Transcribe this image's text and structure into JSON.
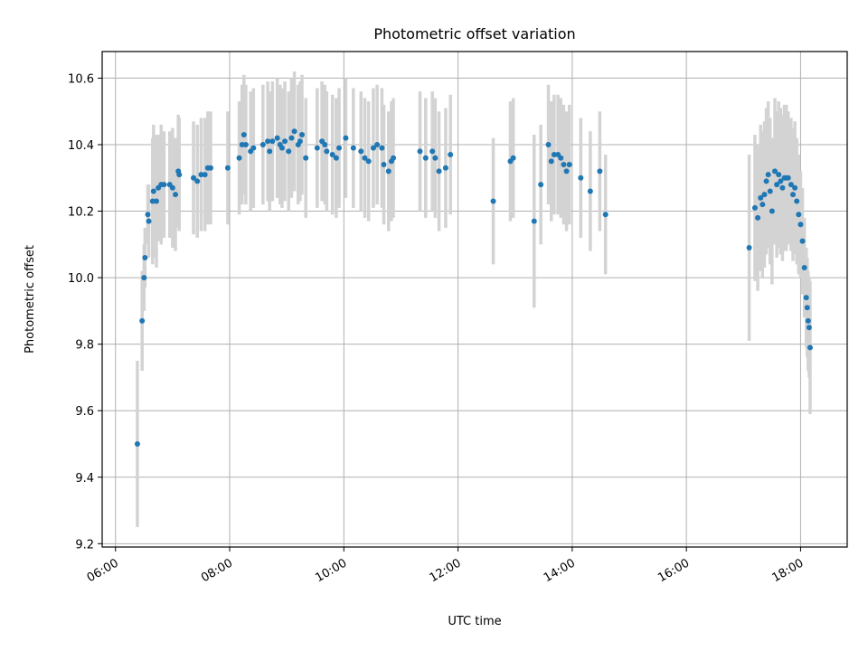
{
  "chart_data": {
    "type": "scatter",
    "title": "Photometric offset variation",
    "xlabel": "UTC time",
    "ylabel": "Photometric offset",
    "x_tick_labels": [
      "06:00",
      "08:00",
      "10:00",
      "12:00",
      "14:00",
      "16:00",
      "18:00"
    ],
    "y_tick_labels": [
      "9.2",
      "9.4",
      "9.6",
      "9.8",
      "10.0",
      "10.2",
      "10.4",
      "10.6"
    ],
    "xlim": [
      "05:46",
      "18:49"
    ],
    "ylim": [
      9.19,
      10.68
    ],
    "grid": true,
    "colors": {
      "points": "#1f77b4",
      "error_bars": "#d3d3d3"
    },
    "points": [
      [
        "06:23",
        9.5,
        0.25
      ],
      [
        "06:28",
        9.87,
        0.15
      ],
      [
        "06:30",
        10.0,
        0.1
      ],
      [
        "06:31",
        10.06,
        0.09
      ],
      [
        "06:34",
        10.19,
        0.09
      ],
      [
        "06:35",
        10.17,
        0.11
      ],
      [
        "06:39",
        10.23,
        0.19
      ],
      [
        "06:40",
        10.26,
        0.2
      ],
      [
        "06:43",
        10.23,
        0.2
      ],
      [
        "06:45",
        10.27,
        0.16
      ],
      [
        "06:48",
        10.28,
        0.18
      ],
      [
        "06:51",
        10.28,
        0.16
      ],
      [
        "06:57",
        10.28,
        0.16
      ],
      [
        "07:00",
        10.27,
        0.18
      ],
      [
        "07:03",
        10.25,
        0.17
      ],
      [
        "07:06",
        10.32,
        0.17
      ],
      [
        "07:07",
        10.31,
        0.17
      ],
      [
        "07:22",
        10.3,
        0.17
      ],
      [
        "07:26",
        10.29,
        0.17
      ],
      [
        "07:30",
        10.31,
        0.17
      ],
      [
        "07:34",
        10.31,
        0.17
      ],
      [
        "07:37",
        10.33,
        0.17
      ],
      [
        "07:40",
        10.33,
        0.17
      ],
      [
        "07:58",
        10.33,
        0.17
      ],
      [
        "08:10",
        10.36,
        0.17
      ],
      [
        "08:13",
        10.4,
        0.18
      ],
      [
        "08:15",
        10.43,
        0.18
      ],
      [
        "08:17",
        10.4,
        0.18
      ],
      [
        "08:22",
        10.38,
        0.18
      ],
      [
        "08:25",
        10.39,
        0.18
      ],
      [
        "08:35",
        10.4,
        0.18
      ],
      [
        "08:40",
        10.41,
        0.18
      ],
      [
        "08:42",
        10.38,
        0.18
      ],
      [
        "08:45",
        10.41,
        0.18
      ],
      [
        "08:50",
        10.42,
        0.18
      ],
      [
        "08:53",
        10.4,
        0.18
      ],
      [
        "08:55",
        10.39,
        0.18
      ],
      [
        "08:58",
        10.41,
        0.18
      ],
      [
        "09:02",
        10.38,
        0.18
      ],
      [
        "09:05",
        10.42,
        0.18
      ],
      [
        "09:08",
        10.44,
        0.18
      ],
      [
        "09:12",
        10.4,
        0.18
      ],
      [
        "09:14",
        10.41,
        0.18
      ],
      [
        "09:16",
        10.43,
        0.18
      ],
      [
        "09:20",
        10.36,
        0.18
      ],
      [
        "09:32",
        10.39,
        0.18
      ],
      [
        "09:37",
        10.41,
        0.18
      ],
      [
        "09:40",
        10.4,
        0.18
      ],
      [
        "09:42",
        10.38,
        0.18
      ],
      [
        "09:48",
        10.37,
        0.18
      ],
      [
        "09:52",
        10.36,
        0.18
      ],
      [
        "09:55",
        10.39,
        0.18
      ],
      [
        "10:02",
        10.42,
        0.18
      ],
      [
        "10:10",
        10.39,
        0.18
      ],
      [
        "10:18",
        10.38,
        0.18
      ],
      [
        "10:22",
        10.36,
        0.18
      ],
      [
        "10:26",
        10.35,
        0.18
      ],
      [
        "10:31",
        10.39,
        0.18
      ],
      [
        "10:35",
        10.4,
        0.18
      ],
      [
        "10:40",
        10.39,
        0.18
      ],
      [
        "10:42",
        10.34,
        0.18
      ],
      [
        "10:47",
        10.32,
        0.18
      ],
      [
        "10:50",
        10.35,
        0.18
      ],
      [
        "10:52",
        10.36,
        0.18
      ],
      [
        "11:20",
        10.38,
        0.18
      ],
      [
        "11:26",
        10.36,
        0.18
      ],
      [
        "11:33",
        10.38,
        0.18
      ],
      [
        "11:36",
        10.36,
        0.18
      ],
      [
        "11:40",
        10.32,
        0.18
      ],
      [
        "11:47",
        10.33,
        0.18
      ],
      [
        "11:52",
        10.37,
        0.18
      ],
      [
        "12:37",
        10.23,
        0.19
      ],
      [
        "12:55",
        10.35,
        0.18
      ],
      [
        "12:58",
        10.36,
        0.18
      ],
      [
        "13:20",
        10.17,
        0.26
      ],
      [
        "13:27",
        10.28,
        0.18
      ],
      [
        "13:35",
        10.4,
        0.18
      ],
      [
        "13:38",
        10.35,
        0.18
      ],
      [
        "13:41",
        10.37,
        0.18
      ],
      [
        "13:45",
        10.37,
        0.18
      ],
      [
        "13:48",
        10.36,
        0.18
      ],
      [
        "13:51",
        10.34,
        0.18
      ],
      [
        "13:54",
        10.32,
        0.18
      ],
      [
        "13:57",
        10.34,
        0.18
      ],
      [
        "14:09",
        10.3,
        0.18
      ],
      [
        "14:19",
        10.26,
        0.18
      ],
      [
        "14:29",
        10.32,
        0.18
      ],
      [
        "14:35",
        10.19,
        0.18
      ],
      [
        "17:06",
        10.09,
        0.28
      ],
      [
        "17:12",
        10.21,
        0.22
      ],
      [
        "17:15",
        10.18,
        0.22
      ],
      [
        "17:18",
        10.24,
        0.22
      ],
      [
        "17:20",
        10.22,
        0.22
      ],
      [
        "17:22",
        10.25,
        0.22
      ],
      [
        "17:24",
        10.29,
        0.22
      ],
      [
        "17:26",
        10.31,
        0.22
      ],
      [
        "17:28",
        10.26,
        0.22
      ],
      [
        "17:30",
        10.2,
        0.22
      ],
      [
        "17:33",
        10.32,
        0.22
      ],
      [
        "17:35",
        10.28,
        0.22
      ],
      [
        "17:37",
        10.31,
        0.22
      ],
      [
        "17:39",
        10.29,
        0.22
      ],
      [
        "17:41",
        10.27,
        0.22
      ],
      [
        "17:43",
        10.3,
        0.22
      ],
      [
        "17:45",
        10.3,
        0.22
      ],
      [
        "17:47",
        10.3,
        0.2
      ],
      [
        "17:50",
        10.28,
        0.2
      ],
      [
        "17:52",
        10.25,
        0.2
      ],
      [
        "17:54",
        10.27,
        0.2
      ],
      [
        "17:56",
        10.23,
        0.19
      ],
      [
        "17:58",
        10.19,
        0.18
      ],
      [
        "18:00",
        10.16,
        0.16
      ],
      [
        "18:02",
        10.11,
        0.16
      ],
      [
        "18:04",
        10.03,
        0.15
      ],
      [
        "18:06",
        9.94,
        0.15
      ],
      [
        "18:07",
        9.91,
        0.15
      ],
      [
        "18:08",
        9.87,
        0.15
      ],
      [
        "18:09",
        9.85,
        0.15
      ],
      [
        "18:10",
        9.79,
        0.2
      ]
    ]
  }
}
